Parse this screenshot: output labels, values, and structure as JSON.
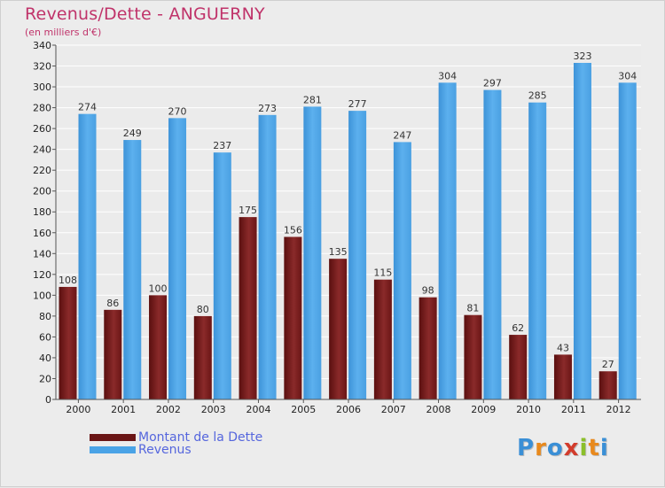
{
  "title": "Revenus/Dette - ANGUERNY",
  "subtitle": "(en milliers d'€)",
  "colors": {
    "title": "#c0336a",
    "debt": "#7a1a1a",
    "revenue": "#4aa3e6",
    "legend_text": "#5566dd"
  },
  "legend": {
    "debt_label": "Montant de la Dette",
    "revenue_label": "Revenus"
  },
  "logo": {
    "letters": [
      "P",
      "r",
      "o",
      "x",
      "i",
      "t",
      "i"
    ],
    "colors": [
      "#3a8fd6",
      "#e8891d",
      "#3a8fd6",
      "#d23c2c",
      "#8bbf2a",
      "#e8891d",
      "#3a8fd6"
    ]
  },
  "chart_data": {
    "type": "bar",
    "categories": [
      "2000",
      "2001",
      "2002",
      "2003",
      "2004",
      "2005",
      "2006",
      "2007",
      "2008",
      "2009",
      "2010",
      "2011",
      "2012"
    ],
    "series": [
      {
        "name": "Montant de la Dette",
        "values": [
          108,
          86,
          100,
          80,
          175,
          156,
          135,
          115,
          98,
          81,
          62,
          43,
          27
        ]
      },
      {
        "name": "Revenus",
        "values": [
          274,
          249,
          270,
          237,
          273,
          281,
          277,
          247,
          304,
          297,
          285,
          323,
          304
        ]
      }
    ],
    "ylim": [
      0,
      340
    ],
    "ytick_step": 20,
    "grid": true
  }
}
